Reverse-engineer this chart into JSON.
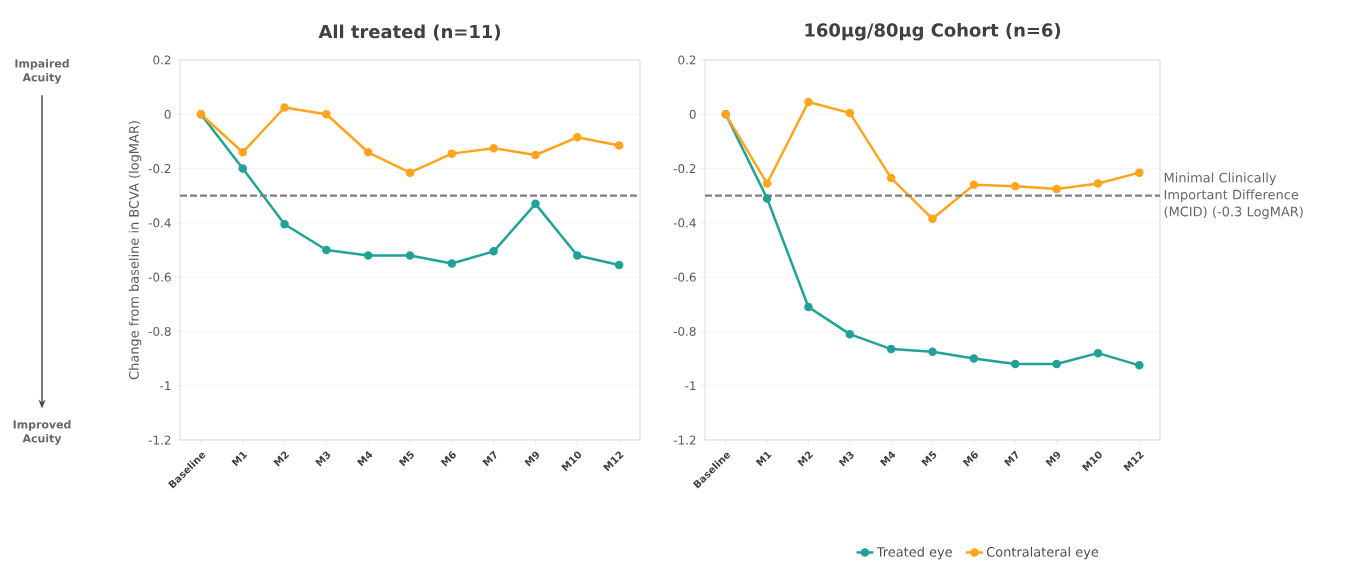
{
  "chart_data": [
    {
      "type": "line",
      "title": "All treated (n=11)",
      "ylabel": "Change from baseline in BCVA (logMAR)",
      "categories": [
        "Baseline",
        "M1",
        "M2",
        "M3",
        "M4",
        "M5",
        "M6",
        "M7",
        "M9",
        "M10",
        "M12"
      ],
      "series": [
        {
          "color": "#1fa397",
          "values": [
            0,
            -0.2,
            -0.405,
            -0.5,
            -0.52,
            -0.52,
            -0.55,
            -0.505,
            -0.33,
            -0.52,
            -0.555
          ]
        },
        {
          "color": "#ffa41c",
          "values": [
            0,
            -0.14,
            0.025,
            0,
            -0.14,
            -0.215,
            -0.145,
            -0.125,
            -0.15,
            -0.085,
            -0.115
          ]
        }
      ],
      "ylim": [
        -1.2,
        0.2
      ],
      "yticks": [
        -1.2,
        -1,
        -0.8,
        -0.6,
        -0.4,
        -0.2,
        0,
        0.2
      ],
      "grid": "y",
      "marker": "circle",
      "ref_lines": [
        {
          "axis": "y",
          "value": -0.3,
          "color": "#808080",
          "line_style": "dashed"
        }
      ],
      "annotations": [
        "Impaired Acuity",
        "Improved Acuity"
      ]
    },
    {
      "type": "line",
      "title": "160µg/80µg Cohort (n=6)",
      "categories": [
        "Baseline",
        "M1",
        "M2",
        "M3",
        "M4",
        "M5",
        "M6",
        "M7",
        "M9",
        "M10",
        "M12"
      ],
      "series": [
        {
          "name": "Treated eye",
          "color": "#1fa397",
          "values": [
            0,
            -0.31,
            -0.71,
            -0.81,
            -0.865,
            -0.875,
            -0.9,
            -0.92,
            -0.92,
            -0.88,
            -0.925
          ]
        },
        {
          "name": "Contralateral eye",
          "color": "#ffa41c",
          "values": [
            0,
            -0.255,
            0.045,
            0.005,
            -0.235,
            -0.385,
            -0.26,
            -0.265,
            -0.275,
            -0.255,
            -0.215
          ]
        }
      ],
      "ylim": [
        -1.2,
        0.2
      ],
      "yticks": [
        -1.2,
        -1,
        -0.8,
        -0.6,
        -0.4,
        -0.2,
        0,
        0.2
      ],
      "grid": "y",
      "marker": "circle",
      "legend": "bottom",
      "ref_lines": [
        {
          "axis": "y",
          "value": -0.3,
          "label": "Minimal Clinically Important Difference (MCID) (-0.3 LogMAR)",
          "color": "#808080",
          "line_style": "dashed"
        }
      ]
    }
  ]
}
